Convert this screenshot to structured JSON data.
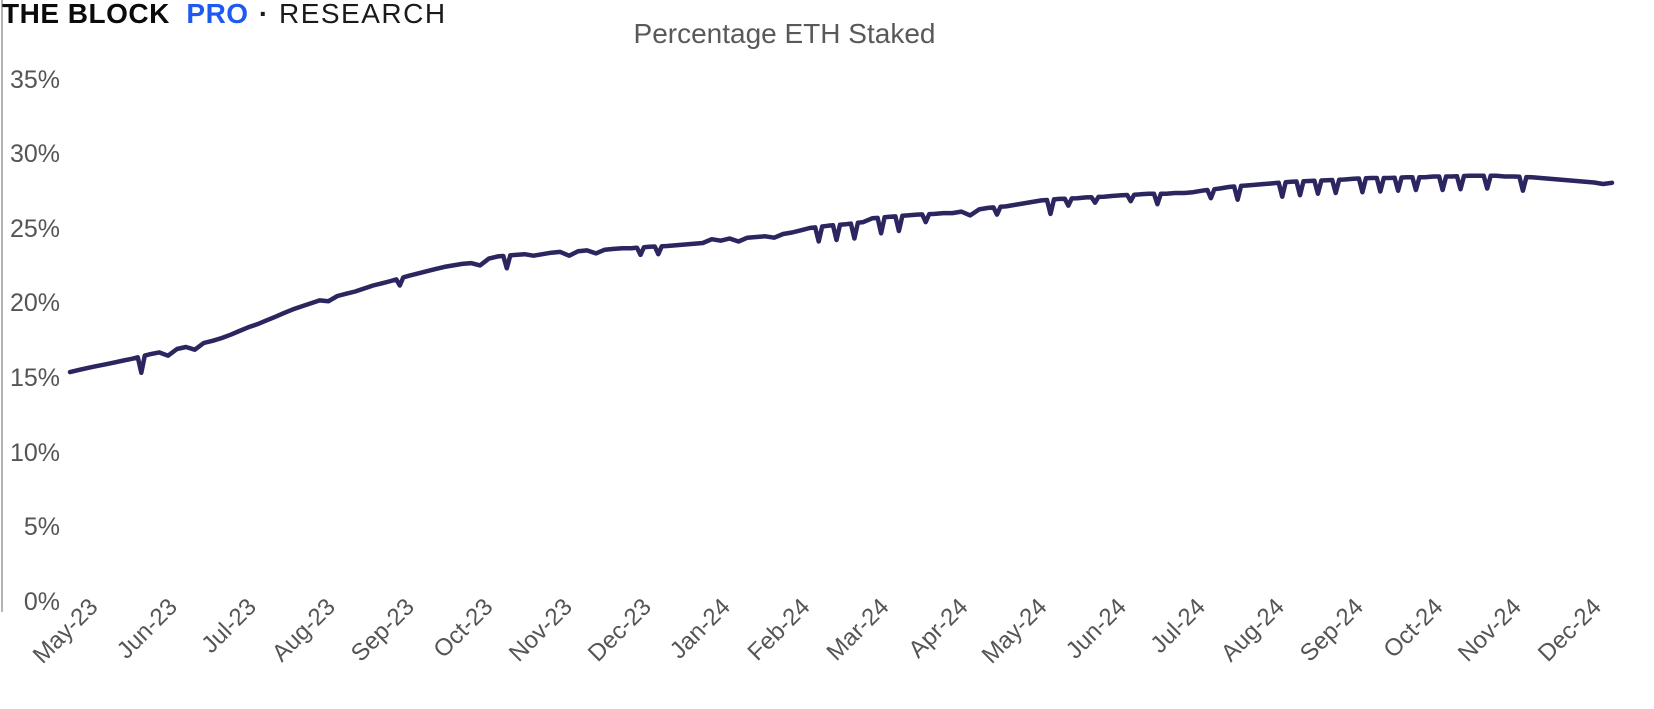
{
  "logo": {
    "part1": "THE BLOCK",
    "part2": "PRO",
    "separator": "·",
    "part3": "RESEARCH",
    "pro_color": "#1f5af0"
  },
  "chart_data": {
    "type": "line",
    "title": "Percentage ETH Staked",
    "xlabel": "",
    "ylabel": "",
    "legend": "none",
    "grid": false,
    "background": "#ffffff",
    "y": {
      "min": 0,
      "max": 35,
      "unit": "%",
      "tick_step": 5,
      "tick_labels": [
        "0%",
        "5%",
        "10%",
        "15%",
        "20%",
        "25%",
        "30%",
        "35%"
      ]
    },
    "x": {
      "start": "May-23",
      "end": "Dec-24",
      "points_per_month": 9,
      "tick_labels": [
        "May-23",
        "Jun-23",
        "Jul-23",
        "Aug-23",
        "Sep-23",
        "Oct-23",
        "Nov-23",
        "Dec-23",
        "Jan-24",
        "Feb-24",
        "Mar-24",
        "Apr-24",
        "May-24",
        "Jun-24",
        "Jul-24",
        "Aug-24",
        "Sep-24",
        "Oct-24",
        "Nov-24",
        "Dec-24"
      ]
    },
    "series": [
      {
        "name": "Percentage ETH Staked",
        "color": "#2b2660",
        "line_width": 4.5,
        "values": [
          15.4,
          15.55,
          15.68,
          15.8,
          15.92,
          16.05,
          16.18,
          16.3,
          15.35,
          16.6,
          16.72,
          16.5,
          16.95,
          17.08,
          16.9,
          17.35,
          17.5,
          17.68,
          17.9,
          18.15,
          18.4,
          18.6,
          18.85,
          19.1,
          19.35,
          19.6,
          19.8,
          20.0,
          20.2,
          20.15,
          20.5,
          20.65,
          20.8,
          21.0,
          21.2,
          21.35,
          21.5,
          21.2,
          21.85,
          22.0,
          22.15,
          22.3,
          22.45,
          22.55,
          22.65,
          22.7,
          22.55,
          23.0,
          23.15,
          22.35,
          23.25,
          23.3,
          23.2,
          23.3,
          23.4,
          23.45,
          23.2,
          23.5,
          23.55,
          23.35,
          23.6,
          23.65,
          23.7,
          23.7,
          23.25,
          23.8,
          23.3,
          23.85,
          23.9,
          23.95,
          24.0,
          24.05,
          24.3,
          24.2,
          24.35,
          24.15,
          24.4,
          24.45,
          24.5,
          24.4,
          24.65,
          24.75,
          24.9,
          25.05,
          24.15,
          25.2,
          24.25,
          25.3,
          24.35,
          25.45,
          25.7,
          24.7,
          25.8,
          24.85,
          25.9,
          25.95,
          25.45,
          26.0,
          26.05,
          26.05,
          26.15,
          25.9,
          26.3,
          26.4,
          25.95,
          26.5,
          26.6,
          26.7,
          26.8,
          26.9,
          26.0,
          27.0,
          26.55,
          27.05,
          27.1,
          26.75,
          27.15,
          27.2,
          27.25,
          26.85,
          27.3,
          27.35,
          26.65,
          27.35,
          27.4,
          27.4,
          27.45,
          27.55,
          27.05,
          27.7,
          27.8,
          26.95,
          27.9,
          27.95,
          28.0,
          28.05,
          27.15,
          28.15,
          27.25,
          28.2,
          27.35,
          28.25,
          27.4,
          28.3,
          28.35,
          27.45,
          28.4,
          27.5,
          28.4,
          27.55,
          28.45,
          27.6,
          28.45,
          28.5,
          27.6,
          28.5,
          27.65,
          28.55,
          28.55,
          27.7,
          28.55,
          28.5,
          28.5,
          27.55,
          28.45,
          28.4,
          28.35,
          28.3,
          28.25,
          28.2,
          28.15,
          28.1,
          28.0,
          28.08
        ]
      }
    ]
  }
}
